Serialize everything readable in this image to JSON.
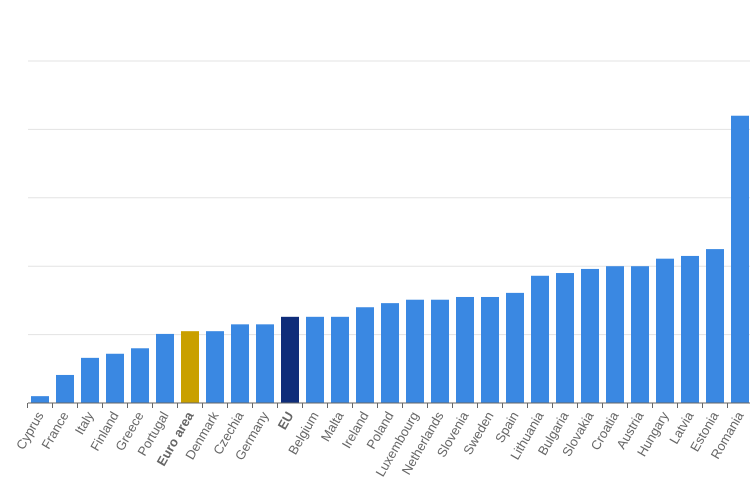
{
  "chart_data": {
    "type": "bar",
    "title": "",
    "xlabel": "",
    "ylabel": "",
    "y_tick_labels_shown": false,
    "grid": true,
    "ylim": [
      0,
      5
    ],
    "categories": [
      "Cyprus",
      "France",
      "Italy",
      "Finland",
      "Greece",
      "Portugal",
      "Euro area",
      "Denmark",
      "Czechia",
      "Germany",
      "EU",
      "Belgium",
      "Malta",
      "Ireland",
      "Poland",
      "Luxembourg",
      "Netherlands",
      "Slovenia",
      "Sweden",
      "Spain",
      "Lithuania",
      "Bulgaria",
      "Slovakia",
      "Croatia",
      "Austria",
      "Hungary",
      "Latvia",
      "Estonia",
      "Romania"
    ],
    "values": [
      0.1,
      0.41,
      0.66,
      0.72,
      0.8,
      1.01,
      1.05,
      1.05,
      1.15,
      1.15,
      1.26,
      1.26,
      1.26,
      1.4,
      1.46,
      1.51,
      1.51,
      1.55,
      1.55,
      1.61,
      1.86,
      1.9,
      1.96,
      2.0,
      2.0,
      2.11,
      2.15,
      2.25,
      4.2
    ],
    "highlighted": {
      "Euro area": "#c9a000",
      "EU": "#0f2d7a"
    },
    "bold_labels": [
      "Euro area",
      "EU"
    ],
    "colors": {
      "default": "#3a88e2",
      "euro_area": "#c9a000",
      "eu": "#0f2d7a"
    }
  }
}
